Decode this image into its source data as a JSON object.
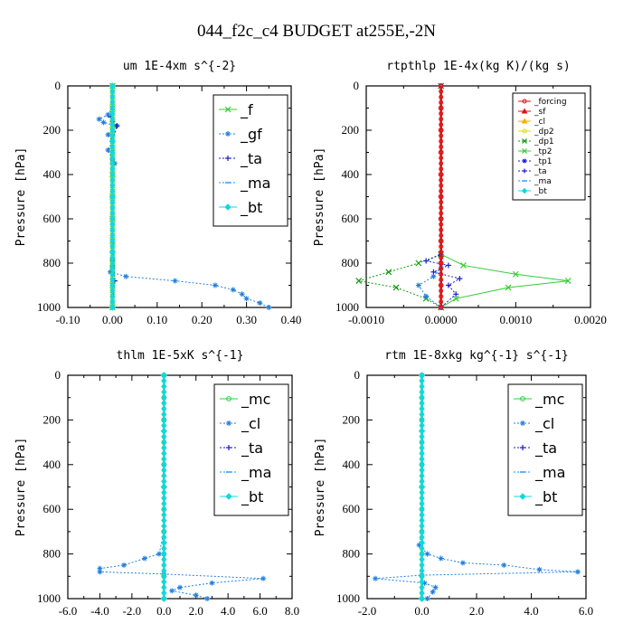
{
  "figure": {
    "title": "044_f2c_c4  BUDGET at255E,-2N"
  },
  "colors": {
    "green": "#33cc33",
    "blue_light": "#2080e0",
    "navy": "#1a1acc",
    "cyan": "#10d8e0",
    "sky": "#1e90ff",
    "red": "#dd1111",
    "orange": "#ffaa00",
    "yellow": "#dddd00",
    "forest": "#119911"
  },
  "chart_data": [
    {
      "type": "line",
      "title": "um  1E-4xm s^{-2}",
      "ylabel": "Pressure [hPa]",
      "xlim": [
        -0.1,
        0.4
      ],
      "ylim": [
        1000,
        0
      ],
      "xticks": [
        "-0.10",
        "0.00",
        "0.10",
        "0.20",
        "0.30",
        "0.40"
      ],
      "yticks": [
        "0",
        "200",
        "400",
        "600",
        "800",
        "1000"
      ],
      "legend": {
        "position": "top-right",
        "entries": [
          "_f",
          "_gf",
          "_ta",
          "_ma",
          "_bt"
        ]
      },
      "series": [
        {
          "name": "_gf",
          "x": [
            0.0,
            -0.01,
            -0.03,
            -0.02,
            0.01,
            -0.01,
            0.0,
            -0.01,
            0.0,
            0.005,
            0.0,
            0.0,
            0.0,
            0.0,
            0.0,
            0.0,
            -0.005,
            0.03,
            0.14,
            0.23,
            0.27,
            0.29,
            0.3,
            0.33,
            0.35
          ],
          "y": [
            100,
            130,
            150,
            165,
            180,
            220,
            250,
            290,
            330,
            350,
            400,
            500,
            600,
            700,
            780,
            820,
            840,
            860,
            880,
            900,
            920,
            940,
            960,
            980,
            1000
          ]
        },
        {
          "name": "_ta",
          "x": [
            0.0,
            -0.004,
            0.0,
            0.01,
            0.0,
            0.0,
            0.0,
            0.005,
            0.0
          ],
          "y": [
            100,
            140,
            160,
            180,
            250,
            350,
            600,
            880,
            1000
          ]
        },
        {
          "name": "_f",
          "x": [
            0.0,
            0.0,
            0.0,
            0.0,
            0.0,
            0.0,
            0.0,
            0.0,
            0.0,
            0.0,
            0.0
          ],
          "y": [
            0,
            100,
            200,
            300,
            400,
            500,
            600,
            700,
            800,
            900,
            1000
          ]
        },
        {
          "name": "_bt",
          "x": [
            0.0,
            0.0,
            0.0,
            0.0,
            0.0
          ],
          "y": [
            0,
            250,
            500,
            750,
            1000
          ]
        }
      ]
    },
    {
      "type": "line",
      "title": "rtpthlp  1E-4x(kg K)/(kg s)",
      "ylabel": "Pressure [hPa]",
      "xlim": [
        -0.001,
        0.002
      ],
      "ylim": [
        1000,
        0
      ],
      "xticks": [
        "-0.0010",
        "0.0000",
        "0.0010",
        "0.0020"
      ],
      "yticks": [
        "0",
        "200",
        "400",
        "600",
        "800",
        "1000"
      ],
      "legend": {
        "position": "top-right",
        "entries": [
          "_forcing",
          "_sf",
          "_cl",
          "_dp2",
          "_dp1",
          "_tp2",
          "_tp1",
          "_ta",
          "_ma",
          "_bt"
        ]
      },
      "series": [
        {
          "name": "_tp2",
          "x": [
            0.0,
            0.0,
            0.0003,
            0.001,
            0.0017,
            0.0009,
            0.0002,
            0.0
          ],
          "y": [
            0,
            760,
            810,
            850,
            880,
            910,
            960,
            1000
          ]
        },
        {
          "name": "_dp1",
          "x": [
            0.0,
            0.0,
            -0.0003,
            -0.0007,
            -0.0011,
            -0.0006,
            -0.0002,
            0.0
          ],
          "y": [
            0,
            760,
            800,
            840,
            880,
            910,
            960,
            1000
          ]
        },
        {
          "name": "_ta",
          "x": [
            0.0,
            0.0,
            -0.0002,
            0.0001,
            -0.0001,
            0.00025,
            0.0001,
            0.0002,
            0.0
          ],
          "y": [
            0,
            760,
            790,
            810,
            840,
            870,
            900,
            940,
            1000
          ]
        },
        {
          "name": "_cl",
          "x": [
            0.0,
            0.0,
            -0.0001,
            -0.0003,
            -0.0002,
            0.0
          ],
          "y": [
            0,
            820,
            860,
            900,
            950,
            1000
          ]
        },
        {
          "name": "_forcing",
          "x": [
            0.0,
            0.0,
            0.0,
            0.0,
            0.0,
            0.0,
            0.0,
            0.0,
            0.0,
            0.0,
            0.0
          ],
          "y": [
            0,
            100,
            200,
            300,
            400,
            500,
            600,
            700,
            800,
            900,
            1000
          ]
        }
      ]
    },
    {
      "type": "line",
      "title": "thlm  1E-5xK s^{-1}",
      "ylabel": "Pressure [hPa]",
      "xlim": [
        -6.0,
        8.0
      ],
      "ylim": [
        1000,
        0
      ],
      "xticks": [
        "-6.0",
        "-4.0",
        "-2.0",
        "0.0",
        "2.0",
        "4.0",
        "6.0",
        "8.0"
      ],
      "yticks": [
        "0",
        "200",
        "400",
        "600",
        "800",
        "1000"
      ],
      "legend": {
        "position": "top-right",
        "entries": [
          "_mc",
          "_cl",
          "_ta",
          "_ma",
          "_bt"
        ]
      },
      "series": [
        {
          "name": "_cl",
          "x": [
            0.0,
            0.0,
            0.0,
            0.0,
            -0.3,
            -1.2,
            -2.5,
            -4.0,
            -4.0,
            0.0,
            6.2,
            3.0,
            1.0,
            0.5,
            2.0,
            2.7
          ],
          "y": [
            0,
            200,
            400,
            700,
            800,
            820,
            850,
            865,
            880,
            890,
            910,
            930,
            950,
            965,
            985,
            1000
          ]
        },
        {
          "name": "_mc",
          "x": [
            0.0,
            0.0,
            0.0,
            0.0,
            0.0,
            0.0,
            0.0,
            0.0,
            0.0,
            0.0,
            0.0
          ],
          "y": [
            0,
            100,
            200,
            300,
            400,
            500,
            600,
            700,
            800,
            900,
            1000
          ]
        },
        {
          "name": "_bt",
          "x": [
            0.0,
            0.0,
            0.0,
            0.0,
            0.0
          ],
          "y": [
            0,
            250,
            500,
            750,
            1000
          ]
        }
      ]
    },
    {
      "type": "line",
      "title": "rtm  1E-8xkg kg^{-1} s^{-1}",
      "ylabel": "Pressure [hPa]",
      "xlim": [
        -2.0,
        6.0
      ],
      "ylim": [
        1000,
        0
      ],
      "xticks": [
        "-2.0",
        "0.0",
        "2.0",
        "4.0",
        "6.0"
      ],
      "yticks": [
        "0",
        "200",
        "400",
        "600",
        "800",
        "1000"
      ],
      "legend": {
        "position": "top-right",
        "entries": [
          "_mc",
          "_cl",
          "_ta",
          "_ma",
          "_bt"
        ]
      },
      "series": [
        {
          "name": "_cl",
          "x": [
            0.0,
            0.0,
            0.0,
            0.0,
            -0.1,
            0.2,
            0.7,
            1.5,
            3.0,
            4.3,
            5.7,
            0.0,
            -1.7,
            0.1,
            0.5,
            0.4,
            0.2
          ],
          "y": [
            0,
            200,
            400,
            700,
            760,
            800,
            820,
            840,
            850,
            870,
            880,
            895,
            910,
            930,
            950,
            970,
            1000
          ]
        },
        {
          "name": "_mc",
          "x": [
            0.0,
            0.0,
            0.0,
            0.0,
            0.0,
            0.0,
            0.0,
            0.0,
            0.0,
            0.0,
            0.0
          ],
          "y": [
            0,
            100,
            200,
            300,
            400,
            500,
            600,
            700,
            800,
            900,
            1000
          ]
        },
        {
          "name": "_bt",
          "x": [
            0.0,
            0.0,
            0.0,
            0.0,
            0.0
          ],
          "y": [
            0,
            250,
            500,
            750,
            1000
          ]
        }
      ]
    }
  ]
}
